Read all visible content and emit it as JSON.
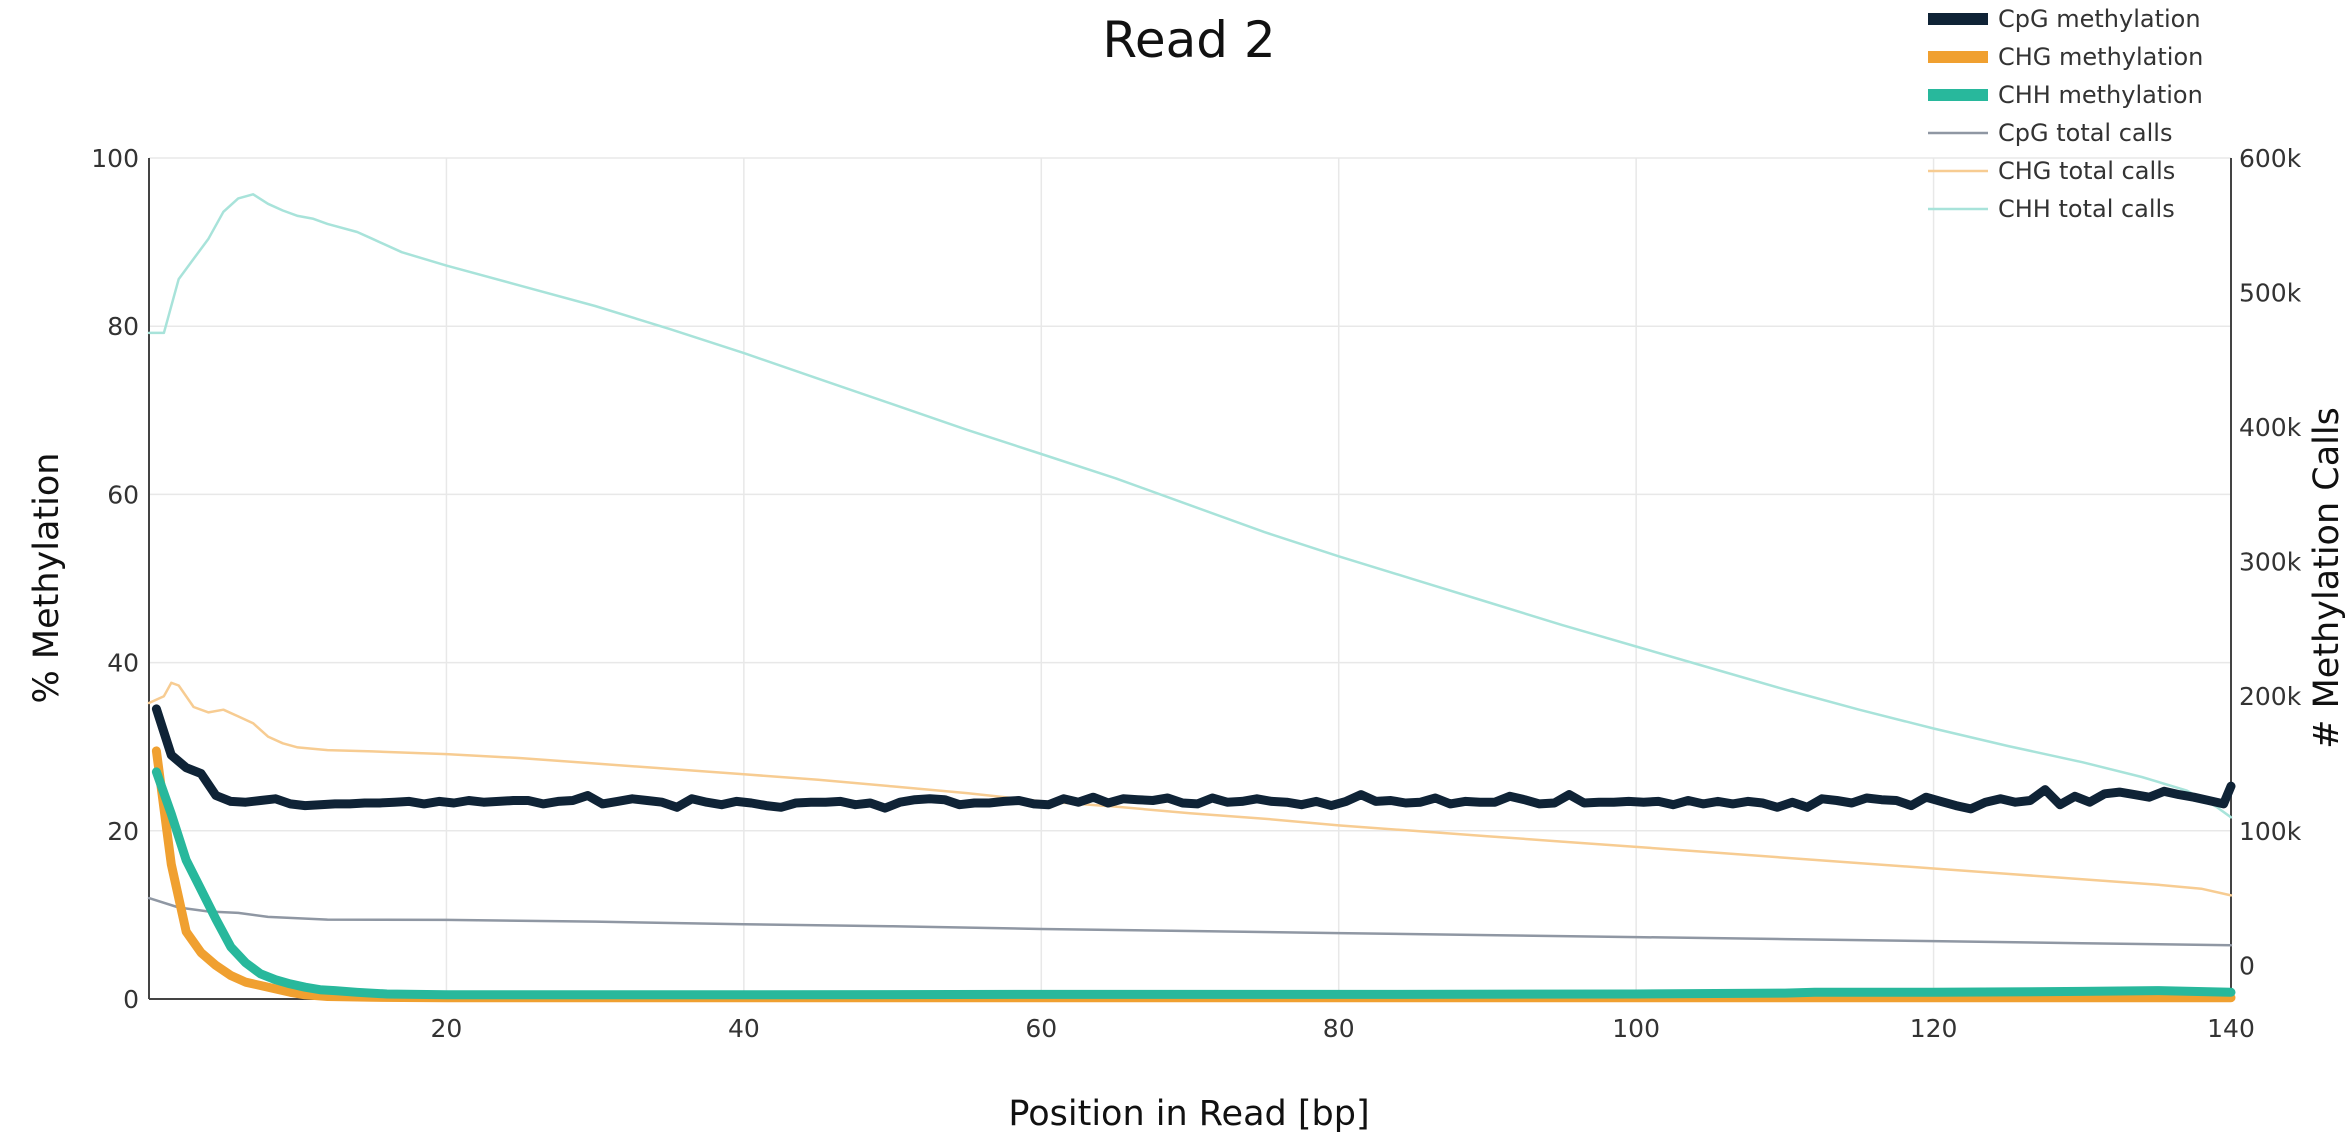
{
  "chart_data": {
    "type": "line",
    "title": "Read 2",
    "xlabel": "Position in Read [bp]",
    "ylabel": "% Methylation",
    "y2label": "# Methylation Calls",
    "xlim": [
      0,
      140
    ],
    "ylim": [
      0,
      100
    ],
    "y2lim": [
      -25000,
      600000
    ],
    "xticks": [
      "20",
      "40",
      "60",
      "80",
      "100",
      "120",
      "140"
    ],
    "yticks": [
      "0",
      "20",
      "40",
      "60",
      "80",
      "100"
    ],
    "y2ticks": [
      "0",
      "100k",
      "200k",
      "300k",
      "400k",
      "500k",
      "600k"
    ],
    "grid": true,
    "legend_position": "top-right",
    "series": [
      {
        "name": "CpG methylation",
        "axis": "y",
        "color": "#0f2336",
        "width": 9,
        "points": [
          [
            0.5,
            34.5
          ],
          [
            1.5,
            29
          ],
          [
            2.5,
            27.5
          ],
          [
            3.5,
            26.8
          ],
          [
            4.5,
            24.2
          ],
          [
            5.5,
            23.5
          ],
          [
            6.5,
            23.4
          ],
          [
            7.5,
            23.6
          ],
          [
            8.5,
            23.8
          ],
          [
            9.5,
            23.2
          ],
          [
            10.5,
            23.0
          ],
          [
            11.5,
            23.1
          ],
          [
            12.5,
            23.2
          ],
          [
            13.5,
            23.2
          ],
          [
            14.5,
            23.3
          ],
          [
            15.5,
            23.3
          ],
          [
            16.5,
            23.4
          ],
          [
            17.5,
            23.5
          ],
          [
            18.5,
            23.2
          ],
          [
            19.5,
            23.5
          ],
          [
            20.5,
            23.3
          ],
          [
            21.5,
            23.6
          ],
          [
            22.5,
            23.4
          ],
          [
            23.5,
            23.5
          ],
          [
            24.5,
            23.6
          ],
          [
            25.5,
            23.6
          ],
          [
            26.5,
            23.2
          ],
          [
            27.5,
            23.5
          ],
          [
            28.5,
            23.6
          ],
          [
            29.5,
            24.2
          ],
          [
            30.5,
            23.2
          ],
          [
            31.5,
            23.5
          ],
          [
            32.5,
            23.8
          ],
          [
            33.5,
            23.6
          ],
          [
            34.5,
            23.4
          ],
          [
            35.5,
            22.8
          ],
          [
            36.5,
            23.8
          ],
          [
            37.5,
            23.4
          ],
          [
            38.5,
            23.1
          ],
          [
            39.5,
            23.5
          ],
          [
            40.5,
            23.3
          ],
          [
            41.5,
            23.0
          ],
          [
            42.5,
            22.8
          ],
          [
            43.5,
            23.3
          ],
          [
            44.5,
            23.4
          ],
          [
            45.5,
            23.4
          ],
          [
            46.5,
            23.5
          ],
          [
            47.5,
            23.1
          ],
          [
            48.5,
            23.3
          ],
          [
            49.5,
            22.7
          ],
          [
            50.5,
            23.4
          ],
          [
            51.5,
            23.7
          ],
          [
            52.5,
            23.8
          ],
          [
            53.5,
            23.7
          ],
          [
            54.5,
            23.1
          ],
          [
            55.5,
            23.3
          ],
          [
            56.5,
            23.3
          ],
          [
            57.5,
            23.5
          ],
          [
            58.5,
            23.6
          ],
          [
            59.5,
            23.2
          ],
          [
            60.5,
            23.1
          ],
          [
            61.5,
            23.8
          ],
          [
            62.5,
            23.4
          ],
          [
            63.5,
            24.0
          ],
          [
            64.5,
            23.3
          ],
          [
            65.5,
            23.8
          ],
          [
            66.5,
            23.7
          ],
          [
            67.5,
            23.6
          ],
          [
            68.5,
            23.9
          ],
          [
            69.5,
            23.3
          ],
          [
            70.5,
            23.2
          ],
          [
            71.5,
            23.9
          ],
          [
            72.5,
            23.4
          ],
          [
            73.5,
            23.5
          ],
          [
            74.5,
            23.8
          ],
          [
            75.5,
            23.5
          ],
          [
            76.5,
            23.4
          ],
          [
            77.5,
            23.1
          ],
          [
            78.5,
            23.5
          ],
          [
            79.5,
            23.0
          ],
          [
            80.5,
            23.5
          ],
          [
            81.5,
            24.3
          ],
          [
            82.5,
            23.5
          ],
          [
            83.5,
            23.6
          ],
          [
            84.5,
            23.3
          ],
          [
            85.5,
            23.4
          ],
          [
            86.5,
            23.9
          ],
          [
            87.5,
            23.2
          ],
          [
            88.5,
            23.5
          ],
          [
            89.5,
            23.4
          ],
          [
            90.5,
            23.4
          ],
          [
            91.5,
            24.1
          ],
          [
            92.5,
            23.7
          ],
          [
            93.5,
            23.2
          ],
          [
            94.5,
            23.3
          ],
          [
            95.5,
            24.3
          ],
          [
            96.5,
            23.3
          ],
          [
            97.5,
            23.4
          ],
          [
            98.5,
            23.4
          ],
          [
            99.5,
            23.5
          ],
          [
            100.5,
            23.4
          ],
          [
            101.5,
            23.5
          ],
          [
            102.5,
            23.1
          ],
          [
            103.5,
            23.6
          ],
          [
            104.5,
            23.2
          ],
          [
            105.5,
            23.5
          ],
          [
            106.5,
            23.2
          ],
          [
            107.5,
            23.5
          ],
          [
            108.5,
            23.3
          ],
          [
            109.5,
            22.8
          ],
          [
            110.5,
            23.4
          ],
          [
            111.5,
            22.8
          ],
          [
            112.5,
            23.8
          ],
          [
            113.5,
            23.6
          ],
          [
            114.5,
            23.3
          ],
          [
            115.5,
            23.9
          ],
          [
            116.5,
            23.7
          ],
          [
            117.5,
            23.6
          ],
          [
            118.5,
            23.0
          ],
          [
            119.5,
            24.0
          ],
          [
            120.5,
            23.5
          ],
          [
            121.5,
            23.0
          ],
          [
            122.5,
            22.6
          ],
          [
            123.5,
            23.4
          ],
          [
            124.5,
            23.8
          ],
          [
            125.5,
            23.4
          ],
          [
            126.5,
            23.6
          ],
          [
            127.5,
            24.9
          ],
          [
            128.5,
            23.1
          ],
          [
            129.5,
            24.1
          ],
          [
            130.5,
            23.4
          ],
          [
            131.5,
            24.4
          ],
          [
            132.5,
            24.6
          ],
          [
            133.5,
            24.3
          ],
          [
            134.5,
            24.0
          ],
          [
            135.5,
            24.7
          ],
          [
            136.5,
            24.3
          ],
          [
            137.5,
            24.0
          ],
          [
            138.5,
            23.6
          ],
          [
            139.5,
            23.2
          ],
          [
            140.0,
            25.3
          ]
        ]
      },
      {
        "name": "CHG methylation",
        "axis": "y",
        "color": "#f0a030",
        "width": 9,
        "points": [
          [
            0.5,
            29.5
          ],
          [
            1.5,
            16
          ],
          [
            2.5,
            8
          ],
          [
            3.5,
            5.5
          ],
          [
            4.5,
            4
          ],
          [
            5.5,
            2.8
          ],
          [
            6.5,
            2
          ],
          [
            7.5,
            1.6
          ],
          [
            8.5,
            1.2
          ],
          [
            9.5,
            0.8
          ],
          [
            10.5,
            0.5
          ],
          [
            12,
            0.3
          ],
          [
            15,
            0.2
          ],
          [
            20,
            0.15
          ],
          [
            40,
            0.15
          ],
          [
            60,
            0.15
          ],
          [
            80,
            0.15
          ],
          [
            100,
            0.15
          ],
          [
            120,
            0.15
          ],
          [
            140,
            0.15
          ]
        ]
      },
      {
        "name": "CHH methylation",
        "axis": "y",
        "color": "#28b89c",
        "width": 9,
        "points": [
          [
            0.5,
            27
          ],
          [
            1.5,
            22
          ],
          [
            2.5,
            16.5
          ],
          [
            3.5,
            13
          ],
          [
            4.5,
            9.5
          ],
          [
            5.5,
            6.2
          ],
          [
            6.5,
            4.3
          ],
          [
            7.5,
            3
          ],
          [
            8.5,
            2.3
          ],
          [
            9.5,
            1.8
          ],
          [
            10.5,
            1.4
          ],
          [
            11.5,
            1.1
          ],
          [
            12.5,
            1.0
          ],
          [
            14,
            0.8
          ],
          [
            16,
            0.6
          ],
          [
            20,
            0.5
          ],
          [
            40,
            0.5
          ],
          [
            60,
            0.55
          ],
          [
            80,
            0.55
          ],
          [
            100,
            0.6
          ],
          [
            110,
            0.7
          ],
          [
            112,
            0.8
          ],
          [
            120,
            0.8
          ],
          [
            130,
            0.9
          ],
          [
            135,
            1.0
          ],
          [
            140,
            0.8
          ]
        ]
      },
      {
        "name": "CpG total calls",
        "axis": "y2",
        "color": "#8f97a3",
        "width": 2.5,
        "points": [
          [
            0,
            50000
          ],
          [
            2,
            43000
          ],
          [
            4,
            40000
          ],
          [
            6,
            39000
          ],
          [
            8,
            36000
          ],
          [
            12,
            34000
          ],
          [
            20,
            33800
          ],
          [
            30,
            32500
          ],
          [
            40,
            30500
          ],
          [
            50,
            29000
          ],
          [
            60,
            27000
          ],
          [
            70,
            25500
          ],
          [
            80,
            24000
          ],
          [
            90,
            22500
          ],
          [
            100,
            21000
          ],
          [
            110,
            19500
          ],
          [
            120,
            18000
          ],
          [
            130,
            16500
          ],
          [
            140,
            15000
          ]
        ]
      },
      {
        "name": "CHG total calls",
        "axis": "y2",
        "color": "#f7cc92",
        "width": 2.5,
        "points": [
          [
            0,
            195000
          ],
          [
            1,
            200000
          ],
          [
            1.5,
            210000
          ],
          [
            2,
            208000
          ],
          [
            3,
            192000
          ],
          [
            4,
            188000
          ],
          [
            5,
            190000
          ],
          [
            6,
            185000
          ],
          [
            7,
            180000
          ],
          [
            8,
            170000
          ],
          [
            9,
            165000
          ],
          [
            10,
            162000
          ],
          [
            12,
            160000
          ],
          [
            15,
            159000
          ],
          [
            20,
            157000
          ],
          [
            25,
            154000
          ],
          [
            30,
            150000
          ],
          [
            35,
            146000
          ],
          [
            40,
            142000
          ],
          [
            45,
            138000
          ],
          [
            50,
            133000
          ],
          [
            55,
            128000
          ],
          [
            60,
            122000
          ],
          [
            65,
            118000
          ],
          [
            70,
            113000
          ],
          [
            75,
            109000
          ],
          [
            80,
            104000
          ],
          [
            85,
            100000
          ],
          [
            90,
            96000
          ],
          [
            95,
            92000
          ],
          [
            100,
            88000
          ],
          [
            105,
            84000
          ],
          [
            110,
            80000
          ],
          [
            115,
            76000
          ],
          [
            120,
            72000
          ],
          [
            125,
            68000
          ],
          [
            130,
            64000
          ],
          [
            135,
            60000
          ],
          [
            138,
            57000
          ],
          [
            140,
            52000
          ]
        ]
      },
      {
        "name": "CHH total calls",
        "axis": "y2",
        "color": "#a8e3da",
        "width": 2.5,
        "points": [
          [
            0,
            470000
          ],
          [
            1,
            470000
          ],
          [
            2,
            510000
          ],
          [
            3,
            525000
          ],
          [
            4,
            540000
          ],
          [
            5,
            560000
          ],
          [
            6,
            570000
          ],
          [
            7,
            573000
          ],
          [
            8,
            566000
          ],
          [
            9,
            561000
          ],
          [
            10,
            557000
          ],
          [
            11,
            555000
          ],
          [
            12,
            551000
          ],
          [
            14,
            545000
          ],
          [
            15,
            540000
          ],
          [
            17,
            530000
          ],
          [
            20,
            520000
          ],
          [
            25,
            505000
          ],
          [
            30,
            490000
          ],
          [
            35,
            473000
          ],
          [
            40,
            455000
          ],
          [
            45,
            436000
          ],
          [
            50,
            417000
          ],
          [
            55,
            398000
          ],
          [
            60,
            380000
          ],
          [
            65,
            362000
          ],
          [
            70,
            342000
          ],
          [
            75,
            322000
          ],
          [
            80,
            304000
          ],
          [
            85,
            287000
          ],
          [
            90,
            270000
          ],
          [
            95,
            253000
          ],
          [
            100,
            237000
          ],
          [
            105,
            221000
          ],
          [
            110,
            205000
          ],
          [
            115,
            190000
          ],
          [
            120,
            176000
          ],
          [
            125,
            163000
          ],
          [
            130,
            151000
          ],
          [
            134,
            140000
          ],
          [
            137,
            130000
          ],
          [
            139,
            118000
          ],
          [
            140,
            110000
          ]
        ]
      }
    ]
  }
}
